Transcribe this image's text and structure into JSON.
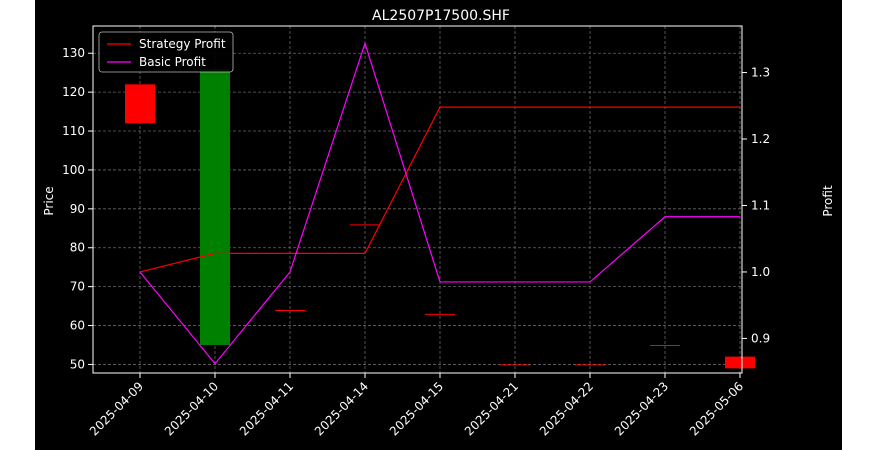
{
  "chart_data": {
    "type": "candlestick",
    "title": "AL2507P17500.SHF",
    "xlabel": "",
    "ylabel_left": "Price",
    "ylabel_right": "Profit",
    "categories": [
      "2025-04-09",
      "2025-04-10",
      "2025-04-11",
      "2025-04-14",
      "2025-04-15",
      "2025-04-21",
      "2025-04-22",
      "2025-04-23",
      "2025-05-06"
    ],
    "ylim_left": [
      47.8,
      137
    ],
    "yticks_left": [
      50,
      60,
      70,
      80,
      90,
      100,
      110,
      120,
      130
    ],
    "ylim_right": [
      0.848,
      1.37
    ],
    "yticks_right": [
      0.9,
      1.0,
      1.1,
      1.2,
      1.3
    ],
    "candles": [
      {
        "date": "2025-04-09",
        "open": 112,
        "close": 122,
        "color": "#ff0000"
      },
      {
        "date": "2025-04-10",
        "open": 55,
        "close": 126,
        "color": "#008000"
      },
      {
        "date": "2025-04-11",
        "open": 64,
        "close": 64,
        "color": "#ff0000"
      },
      {
        "date": "2025-04-14",
        "open": 86,
        "close": 86,
        "color": "#ff0000"
      },
      {
        "date": "2025-04-15",
        "open": 63,
        "close": 63,
        "color": "#ff0000"
      },
      {
        "date": "2025-04-21",
        "open": 50,
        "close": 50,
        "color": "#ff0000"
      },
      {
        "date": "2025-04-22",
        "open": 50,
        "close": 50,
        "color": "#ff0000"
      },
      {
        "date": "2025-04-23",
        "open": 55,
        "close": 55,
        "color": "#ff0000"
      },
      {
        "date": "2025-05-06",
        "open": 49,
        "close": 52,
        "color": "#ff0000"
      }
    ],
    "series": [
      {
        "name": "Strategy Profit",
        "color": "#ff0000",
        "values": [
          1.0,
          1.028,
          1.028,
          1.028,
          1.248,
          1.248,
          1.248,
          1.248,
          1.248
        ]
      },
      {
        "name": "Basic Profit",
        "color": "#ff00ff",
        "values": [
          1.0,
          0.862,
          1.0,
          1.344,
          0.985,
          0.985,
          0.985,
          1.083,
          1.083
        ]
      }
    ],
    "grid": true,
    "legend_position": "top-left",
    "colors": {
      "background": "#000000",
      "foreground": "#ffffff",
      "grid": "#666666"
    }
  }
}
